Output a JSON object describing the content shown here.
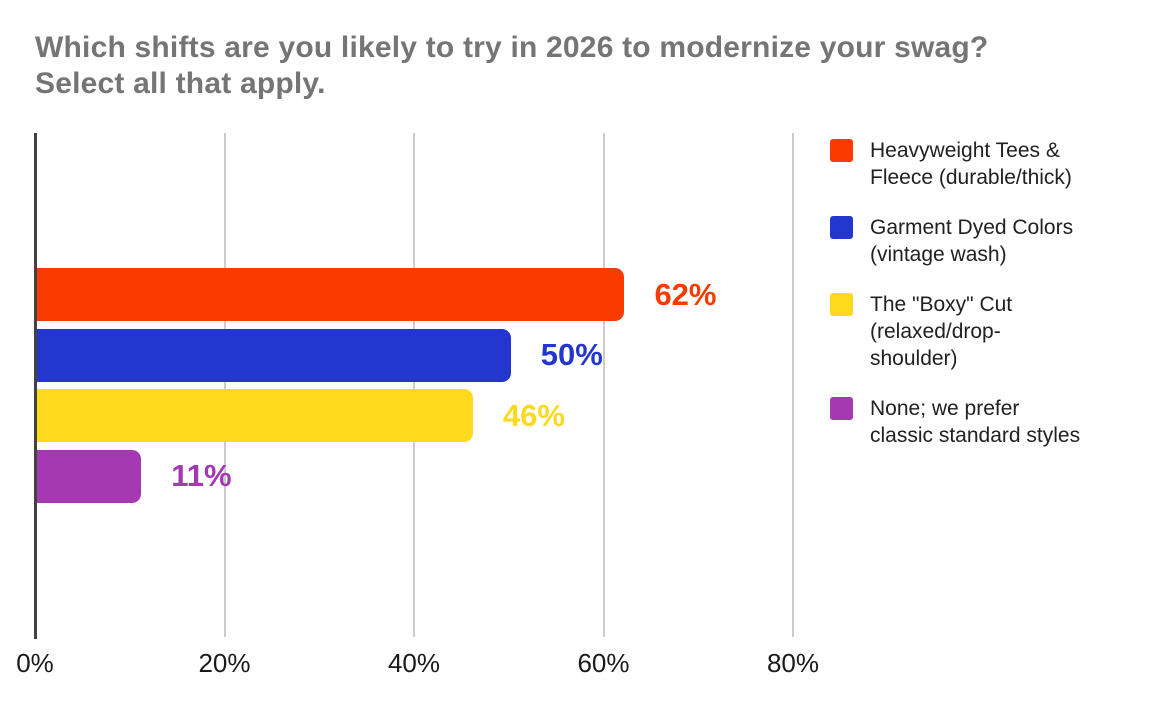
{
  "chart_data": {
    "type": "bar",
    "orientation": "horizontal",
    "title": "Which shifts are you likely to try in 2026 to modernize your swag?\nSelect all that apply.",
    "series": [
      {
        "name": "Heavyweight Tees &\nFleece (durable/thick)",
        "value": 62,
        "label": "62%",
        "color": "#F93B00"
      },
      {
        "name": "Garment Dyed Colors\n(vintage wash)",
        "value": 50,
        "label": "50%",
        "color": "#2337CE"
      },
      {
        "name": "The \"Boxy\" Cut\n(relaxed/drop-\nshoulder)",
        "value": 46,
        "label": "46%",
        "color": "#FFD91E"
      },
      {
        "name": "None; we prefer\nclassic standard styles",
        "value": 11,
        "label": "11%",
        "color": "#A539B2"
      }
    ],
    "x_axis": {
      "min": 0,
      "max": 80,
      "ticks": [
        {
          "value": 0,
          "label": "0%"
        },
        {
          "value": 20,
          "label": "20%"
        },
        {
          "value": 40,
          "label": "40%"
        },
        {
          "value": 60,
          "label": "60%"
        },
        {
          "value": 80,
          "label": "80%"
        }
      ]
    },
    "grid": "vertical",
    "legend_position": "right"
  },
  "styles": {
    "background": "#ffffff",
    "title_color": "#757575",
    "gridline_color": "#cccccc",
    "axis_line_color": "#424242",
    "axis_label_color": "#1a1a1a",
    "legend_text_color": "#212121"
  }
}
